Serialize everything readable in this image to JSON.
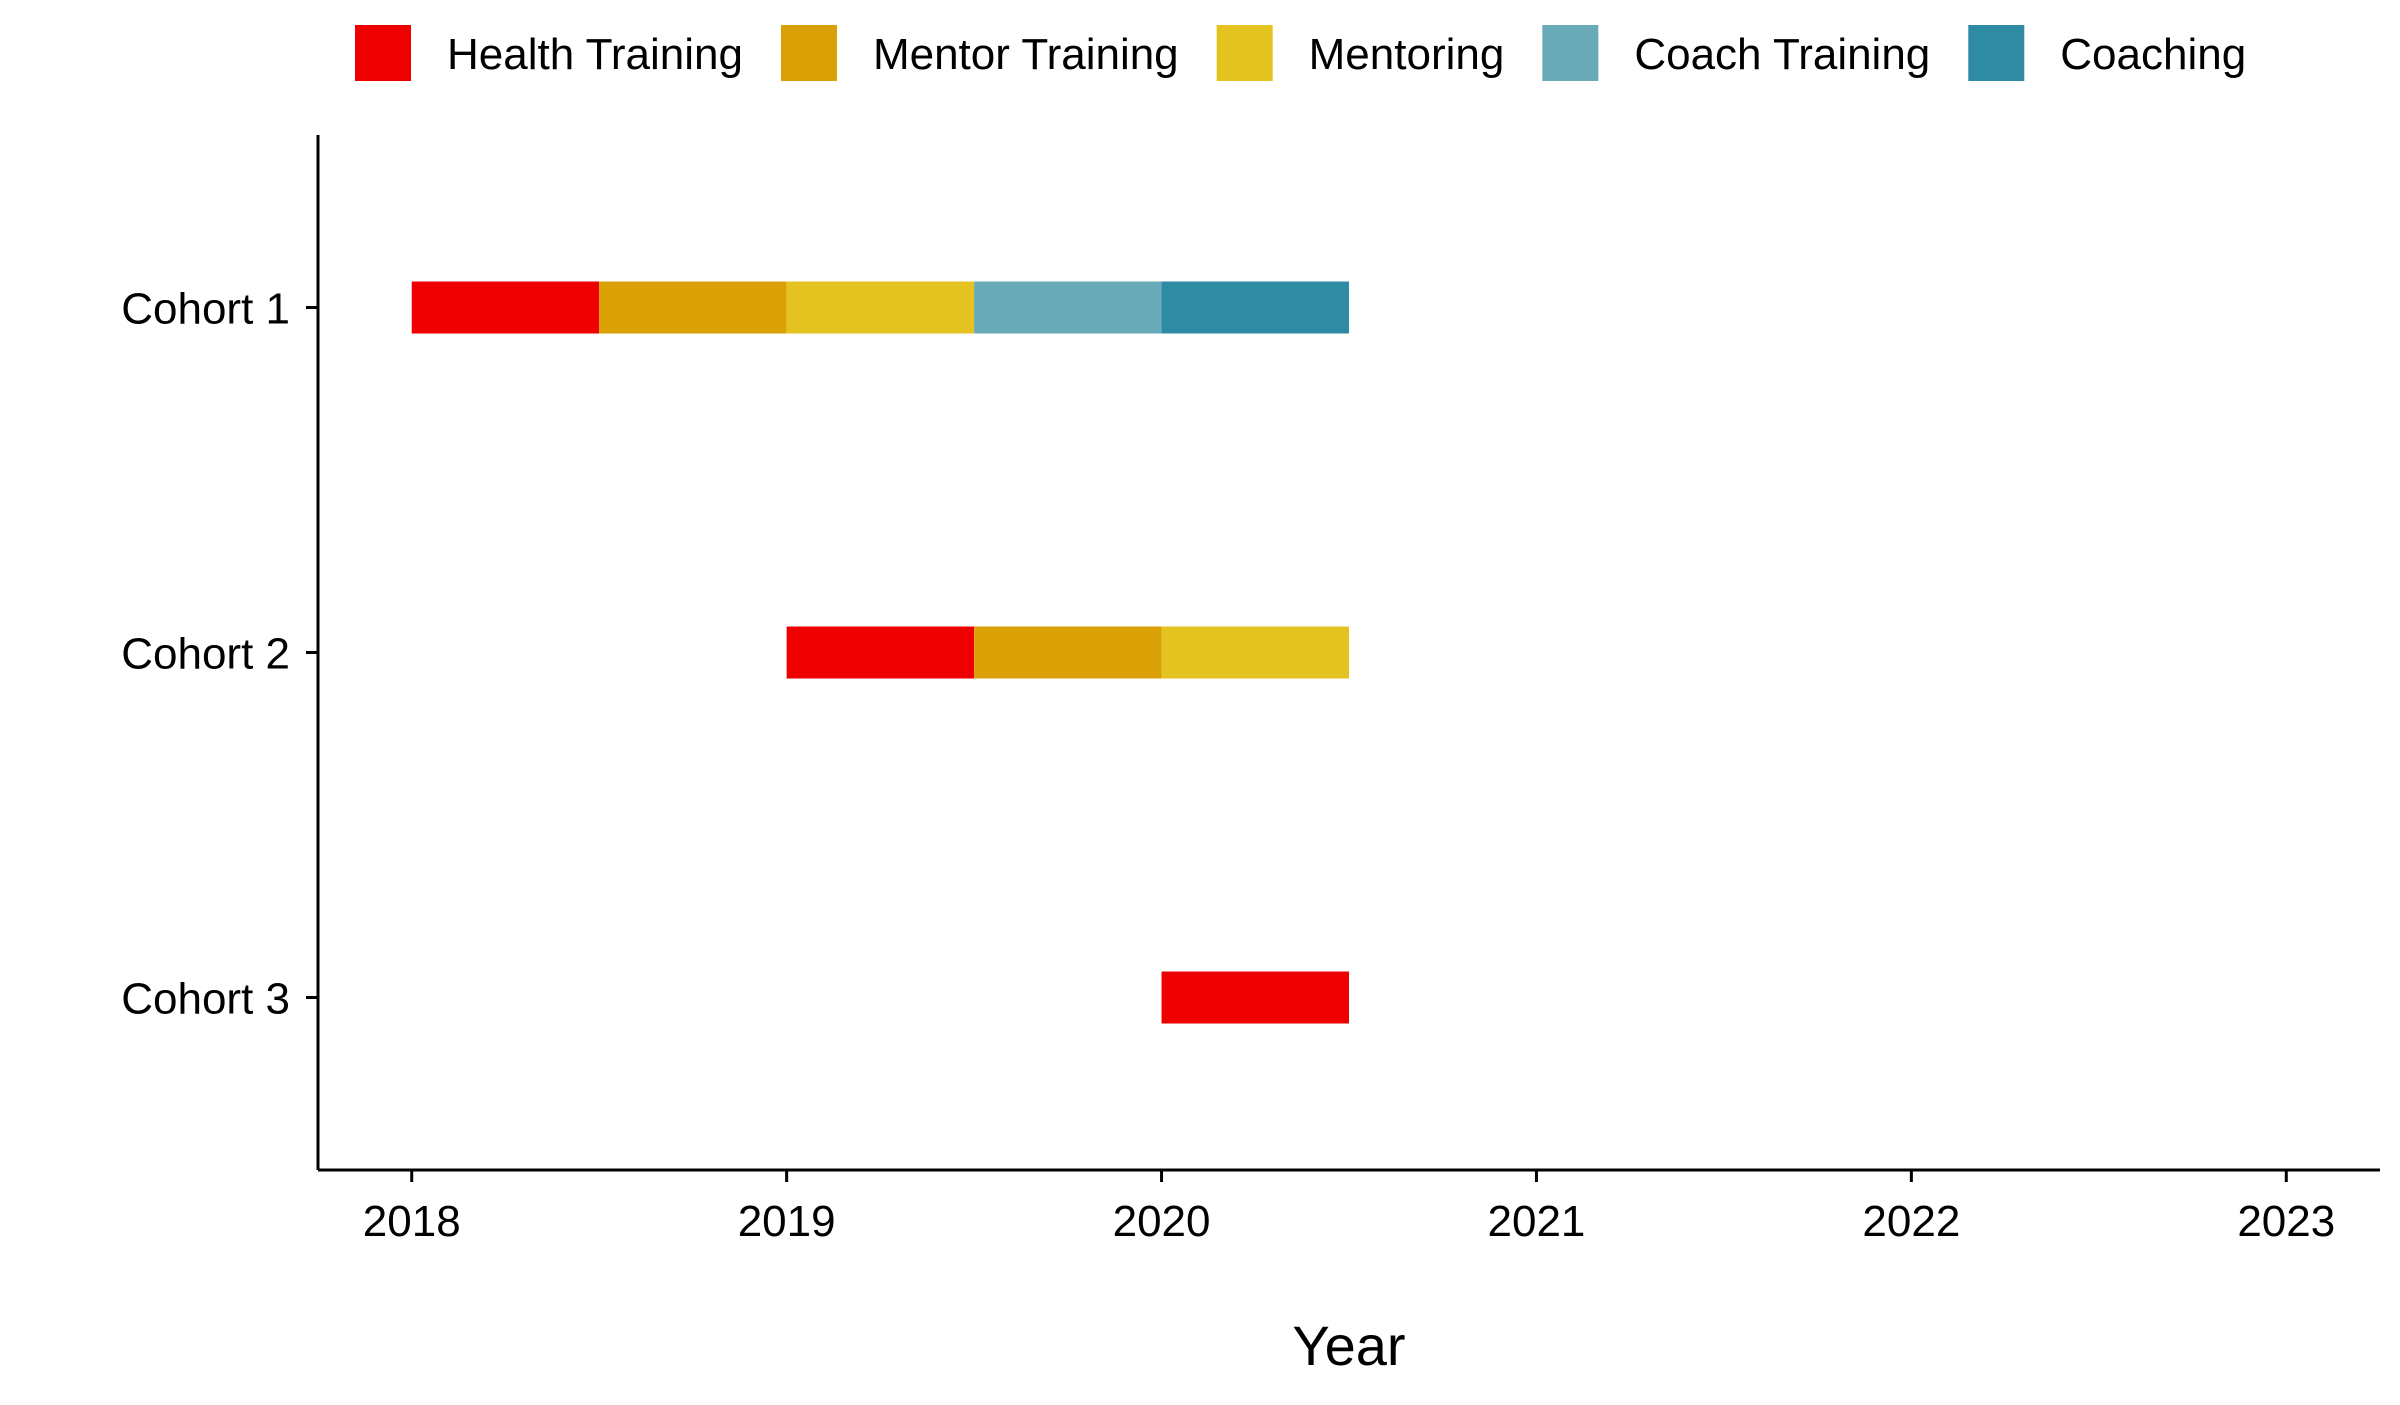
{
  "chart_data": {
    "type": "gantt",
    "title": "",
    "xlabel": "Year",
    "ylabel": "",
    "xlim": [
      2017.75,
      2023.25
    ],
    "x_ticks": [
      2018,
      2019,
      2020,
      2021,
      2022,
      2023
    ],
    "x_tick_labels": [
      "2018",
      "2019",
      "2020",
      "2021",
      "2022",
      "2023"
    ],
    "categories": [
      "Cohort 1",
      "Cohort 2",
      "Cohort 3"
    ],
    "legend_position": "top",
    "grid": false,
    "legend": [
      {
        "name": "Health Training",
        "color": "#EE0000"
      },
      {
        "name": "Mentor Training",
        "color": "#D9A106"
      },
      {
        "name": "Mentoring",
        "color": "#E4C21F"
      },
      {
        "name": "Coach Training",
        "color": "#69AAB9"
      },
      {
        "name": "Coaching",
        "color": "#2F8AA4"
      }
    ],
    "tasks": [
      {
        "cohort": "Cohort 1",
        "phase": "Health Training",
        "start": 2018.0,
        "end": 2018.5
      },
      {
        "cohort": "Cohort 1",
        "phase": "Mentor Training",
        "start": 2018.5,
        "end": 2019.0
      },
      {
        "cohort": "Cohort 1",
        "phase": "Mentoring",
        "start": 2019.0,
        "end": 2019.5
      },
      {
        "cohort": "Cohort 1",
        "phase": "Coach Training",
        "start": 2019.5,
        "end": 2020.0
      },
      {
        "cohort": "Cohort 1",
        "phase": "Coaching",
        "start": 2020.0,
        "end": 2020.5
      },
      {
        "cohort": "Cohort 2",
        "phase": "Health Training",
        "start": 2019.0,
        "end": 2019.5
      },
      {
        "cohort": "Cohort 2",
        "phase": "Mentor Training",
        "start": 2019.5,
        "end": 2020.0
      },
      {
        "cohort": "Cohort 2",
        "phase": "Mentoring",
        "start": 2020.0,
        "end": 2020.5
      },
      {
        "cohort": "Cohort 3",
        "phase": "Health Training",
        "start": 2020.0,
        "end": 2020.5
      }
    ]
  }
}
